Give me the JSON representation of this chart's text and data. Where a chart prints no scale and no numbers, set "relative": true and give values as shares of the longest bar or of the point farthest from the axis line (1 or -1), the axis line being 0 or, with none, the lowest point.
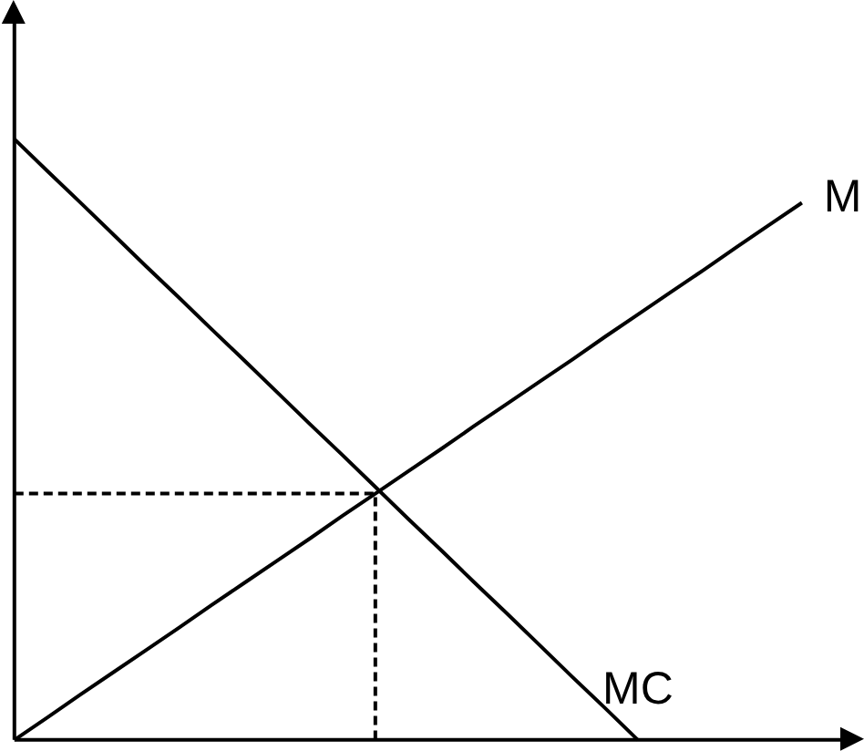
{
  "chart_data": {
    "type": "line",
    "relative": true,
    "categories": [
      null,
      null,
      null,
      null,
      null,
      null,
      null,
      null,
      null,
      null,
      null,
      null,
      null,
      null,
      null,
      null,
      null,
      null,
      null,
      null,
      null,
      null,
      null,
      null,
      null
    ],
    "series": [
      {
        "type": "step",
        "color": "#000000",
        "line_style": "dashed",
        "values": [
          0.41,
          0.41,
          0.41,
          0.41,
          0.41,
          0.41,
          0.41,
          0.41,
          0.41,
          0.41,
          0.41,
          0,
          null,
          null,
          null,
          null,
          null,
          null,
          null,
          null,
          null,
          null,
          null,
          null,
          null
        ]
      },
      {
        "name": "MC",
        "color": "#000000",
        "values": [
          1,
          0.947,
          0.895,
          0.842,
          0.789,
          0.737,
          0.684,
          0.632,
          0.579,
          0.526,
          0.474,
          0.421,
          0.368,
          0.316,
          0.263,
          0.211,
          0.158,
          0.105,
          0.053,
          0,
          null,
          null,
          null,
          null,
          null
        ]
      },
      {
        "name": "M",
        "color": "#000000",
        "values": [
          0,
          0.037,
          0.075,
          0.112,
          0.149,
          0.186,
          0.224,
          0.261,
          0.298,
          0.335,
          0.373,
          0.41,
          0.447,
          0.484,
          0.522,
          0.559,
          0.596,
          0.633,
          0.671,
          0.708,
          0.745,
          0.782,
          0.82,
          0.857,
          0.894
        ]
      }
    ],
    "line_style": "solid"
  }
}
